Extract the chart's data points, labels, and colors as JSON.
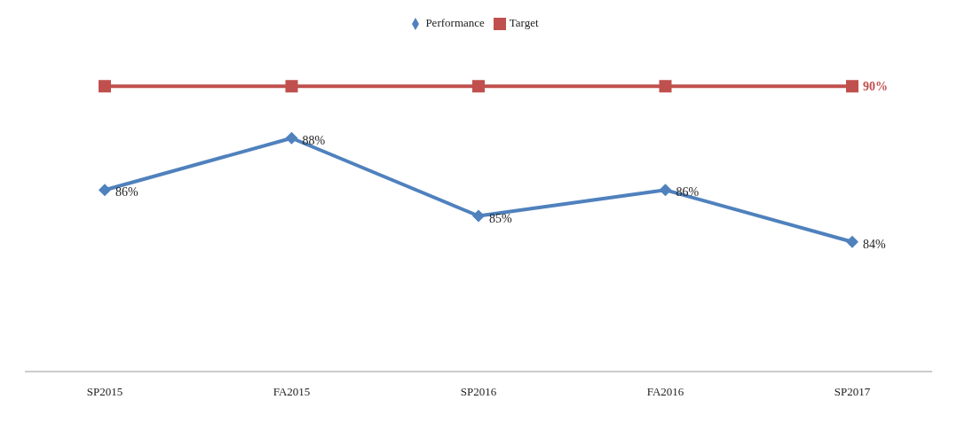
{
  "chart_data": {
    "type": "line",
    "categories": [
      "SP2015",
      "FA2015",
      "SP2016",
      "FA2016",
      "SP2017"
    ],
    "series": [
      {
        "name": "Performance",
        "color": "#4f81bd",
        "values": [
          86,
          88,
          85,
          86,
          84
        ],
        "marker": "diamond",
        "value_labels": [
          "86%",
          "88%",
          "85%",
          "86%",
          "84%"
        ]
      },
      {
        "name": "Target",
        "color": "#c0504d",
        "values": [
          90,
          90,
          90,
          90,
          90
        ],
        "marker": "square",
        "value_labels": [
          null,
          null,
          null,
          null,
          "90%"
        ]
      }
    ],
    "legend": "top"
  }
}
